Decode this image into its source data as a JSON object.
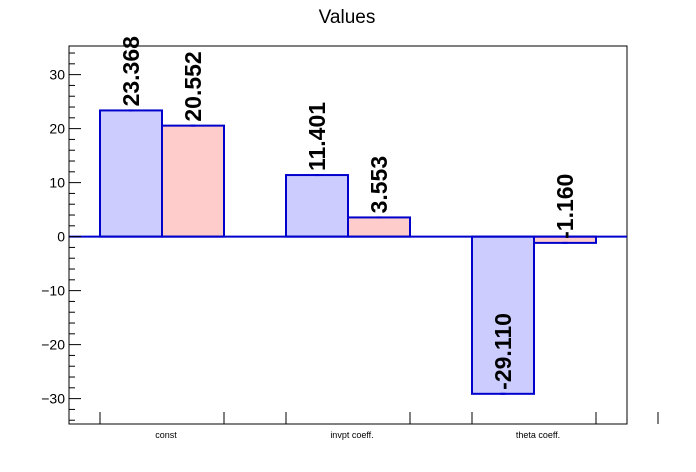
{
  "chart_data": {
    "type": "bar",
    "title": "Values",
    "categories": [
      "const",
      "invpt coeff.",
      "theta coeff."
    ],
    "series": [
      {
        "values": [
          23.368,
          11.401,
          -29.11
        ],
        "labels": [
          "23.368",
          "11.401",
          "-29.110"
        ],
        "fill": "#ccccff",
        "stroke": "#0000cc"
      },
      {
        "values": [
          20.552,
          3.553,
          -1.16
        ],
        "labels": [
          "20.552",
          "3.553",
          "-1.160"
        ],
        "fill": "#ffcccc",
        "stroke": "#0000cc"
      }
    ],
    "ylim": [
      -34.7,
      35.3
    ],
    "yticks": [
      -30,
      -20,
      -10,
      0,
      10,
      20,
      30
    ],
    "ytick_labels": [
      "−30",
      "−20",
      "−10",
      "0",
      "10",
      "20",
      "30"
    ],
    "xlabel": "",
    "ylabel": "",
    "grid": false,
    "legend": "none"
  }
}
